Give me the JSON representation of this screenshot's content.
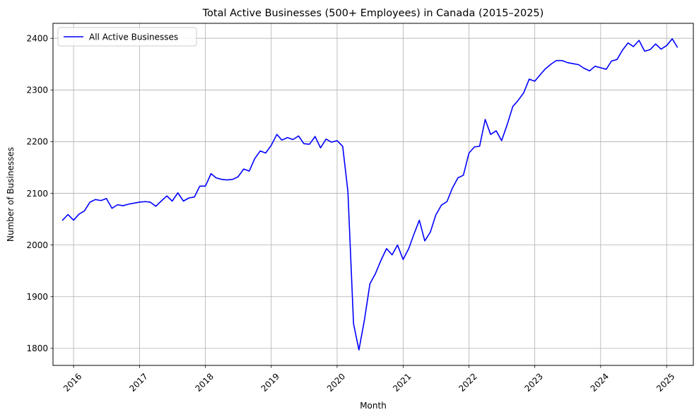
{
  "chart_data": {
    "type": "line",
    "title": "Total Active Businesses (500+ Employees) in Canada (2015–2025)",
    "xlabel": "Month",
    "ylabel": "Number of Businesses",
    "x_ticks": [
      "2016",
      "2017",
      "2018",
      "2019",
      "2020",
      "2021",
      "2022",
      "2023",
      "2024",
      "2025"
    ],
    "y_ticks": [
      "1800",
      "1900",
      "2000",
      "2100",
      "2200",
      "2300",
      "2400"
    ],
    "xlim": [
      "2015-09-09",
      "2025-05-29"
    ],
    "ylim": [
      1767,
      2429
    ],
    "grid": true,
    "legend_position": "upper-left",
    "series": [
      {
        "name": "All Active Businesses",
        "color": "#0000ff",
        "x": [
          "2015-11-01",
          "2015-12-01",
          "2016-01-01",
          "2016-02-01",
          "2016-03-01",
          "2016-04-01",
          "2016-05-01",
          "2016-06-01",
          "2016-07-01",
          "2016-08-01",
          "2016-09-01",
          "2016-10-01",
          "2016-11-01",
          "2016-12-01",
          "2017-01-01",
          "2017-02-01",
          "2017-03-01",
          "2017-04-01",
          "2017-05-01",
          "2017-06-01",
          "2017-07-01",
          "2017-08-01",
          "2017-09-01",
          "2017-10-01",
          "2017-11-01",
          "2017-12-01",
          "2018-01-01",
          "2018-02-01",
          "2018-03-01",
          "2018-04-01",
          "2018-05-01",
          "2018-06-01",
          "2018-07-01",
          "2018-08-01",
          "2018-09-01",
          "2018-10-01",
          "2018-11-01",
          "2018-12-01",
          "2019-01-01",
          "2019-02-01",
          "2019-03-01",
          "2019-04-01",
          "2019-05-01",
          "2019-06-01",
          "2019-07-01",
          "2019-08-01",
          "2019-09-01",
          "2019-10-01",
          "2019-11-01",
          "2019-12-01",
          "2020-01-01",
          "2020-02-01",
          "2020-03-01",
          "2020-04-01",
          "2020-05-01",
          "2020-06-01",
          "2020-07-01",
          "2020-08-01",
          "2020-09-01",
          "2020-10-01",
          "2020-11-01",
          "2020-12-01",
          "2021-01-01",
          "2021-02-01",
          "2021-03-01",
          "2021-04-01",
          "2021-05-01",
          "2021-06-01",
          "2021-07-01",
          "2021-08-01",
          "2021-09-01",
          "2021-10-01",
          "2021-11-01",
          "2021-12-01",
          "2022-01-01",
          "2022-02-01",
          "2022-03-01",
          "2022-04-01",
          "2022-05-01",
          "2022-06-01",
          "2022-07-01",
          "2022-08-01",
          "2022-09-01",
          "2022-10-01",
          "2022-11-01",
          "2022-12-01",
          "2023-01-01",
          "2023-02-01",
          "2023-03-01",
          "2023-04-01",
          "2023-05-01",
          "2023-06-01",
          "2023-07-01",
          "2023-08-01",
          "2023-09-01",
          "2023-10-01",
          "2023-11-01",
          "2023-12-01",
          "2024-01-01",
          "2024-02-01",
          "2024-03-01",
          "2024-04-01",
          "2024-05-01",
          "2024-06-01",
          "2024-07-01",
          "2024-08-01",
          "2024-09-01",
          "2024-10-01",
          "2024-11-01",
          "2024-12-01",
          "2025-01-01",
          "2025-02-01",
          "2025-03-01"
        ],
        "values": [
          2048,
          2059,
          2048,
          2060,
          2066,
          2083,
          2088,
          2086,
          2090,
          2071,
          2078,
          2076,
          2079,
          2081,
          2083,
          2084,
          2083,
          2075,
          2085,
          2095,
          2085,
          2101,
          2085,
          2091,
          2093,
          2114,
          2114,
          2138,
          2130,
          2127,
          2126,
          2127,
          2132,
          2147,
          2143,
          2167,
          2182,
          2178,
          2193,
          2214,
          2203,
          2208,
          2204,
          2211,
          2196,
          2195,
          2210,
          2188,
          2205,
          2199,
          2202,
          2191,
          2103,
          1848,
          1797,
          1856,
          1925,
          1945,
          1971,
          1993,
          1981,
          2000,
          1972,
          1993,
          2020,
          2048,
          2008,
          2025,
          2058,
          2077,
          2084,
          2110,
          2130,
          2135,
          2178,
          2190,
          2191,
          2243,
          2214,
          2221,
          2202,
          2233,
          2268,
          2280,
          2295,
          2321,
          2317,
          2330,
          2341,
          2350,
          2357,
          2357,
          2353,
          2351,
          2349,
          2342,
          2337,
          2346,
          2343,
          2340,
          2356,
          2359,
          2377,
          2391,
          2384,
          2396,
          2375,
          2378,
          2389,
          2379,
          2386,
          2399,
          2383
        ]
      }
    ]
  }
}
